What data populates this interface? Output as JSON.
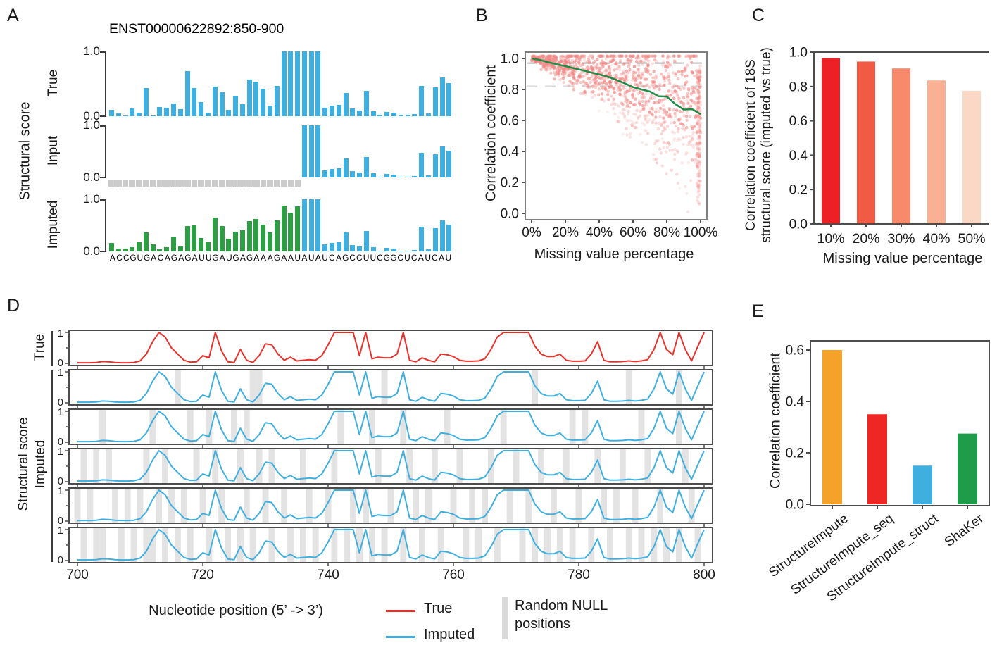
{
  "panels": {
    "a": {
      "letter": "A",
      "title": "ENST00000622892:850-900",
      "ylabel": "Structural score"
    },
    "b": {
      "letter": "B",
      "ylabel": "Correlation coefficient",
      "xlabel": "Missing value percentage"
    },
    "c": {
      "letter": "C",
      "ylabel_lines": [
        "Correlation coefficient of 18S",
        "structural score (imputed vs true)"
      ],
      "xlabel": "Missing value percentage"
    },
    "d": {
      "letter": "D",
      "row_label_true": "True",
      "ylabel_lines": [
        "Structural score",
        "Imputed"
      ],
      "xlabel": "Nucleotide position (5’ -> 3’)",
      "legend": [
        {
          "label": "True",
          "color": "#e8312a",
          "type": "line"
        },
        {
          "label": "Imputed",
          "color": "#3fafe0",
          "type": "line"
        },
        {
          "label": "Random NULL positions",
          "color": "#d9d9d9",
          "type": "band"
        }
      ]
    },
    "e": {
      "letter": "E",
      "ylabel": "Correlation coefficient"
    }
  },
  "chart_data": [
    {
      "id": "A",
      "type": "bar",
      "title": "ENST00000622892:850-900",
      "sequence": "ACCGUGACAGAGAUUGAUGAGAAAGAAUAUAUCAGCCUUCGGCUCAUCAU",
      "ylim": [
        0,
        1
      ],
      "ytick_labels": [
        "1.0",
        "0.0"
      ],
      "bar_color": "#3fafe0",
      "imputed_color": "#2e9e45",
      "null_color": "#cbcbcb",
      "null_count": 28,
      "rows": [
        {
          "name": "True",
          "values": [
            0.1,
            0.04,
            0.01,
            0.12,
            0.05,
            0.43,
            0.01,
            0.14,
            0.13,
            0.2,
            0.11,
            0.7,
            0.44,
            0.22,
            0.05,
            0.46,
            0.37,
            0.1,
            0.31,
            0.19,
            0.57,
            0.53,
            0.42,
            0.16,
            0.47,
            1,
            1,
            1,
            1,
            1,
            1,
            0.13,
            0.16,
            0.17,
            0.36,
            0.12,
            0.09,
            0.39,
            0.08,
            0.02,
            0.07,
            0.05,
            0.02,
            0.02,
            0.03,
            0.47,
            0.04,
            0.45,
            0.6,
            0.51
          ]
        },
        {
          "name": "Input",
          "values": [
            null,
            null,
            null,
            null,
            null,
            null,
            null,
            null,
            null,
            null,
            null,
            null,
            null,
            null,
            null,
            null,
            null,
            null,
            null,
            null,
            null,
            null,
            null,
            null,
            null,
            null,
            null,
            null,
            1,
            1,
            1,
            0.13,
            0.16,
            0.17,
            0.36,
            0.12,
            0.09,
            0.39,
            0.08,
            0.02,
            0.07,
            0.05,
            0.02,
            0.02,
            0.03,
            0.47,
            0.04,
            0.45,
            0.6,
            0.51
          ]
        },
        {
          "name": "Imputed",
          "values": [
            0.16,
            0.06,
            0.05,
            0.08,
            0.17,
            0.36,
            0.14,
            0.04,
            0.08,
            0.29,
            0.09,
            0.48,
            0.5,
            0.26,
            0.18,
            0.65,
            0.48,
            0.24,
            0.38,
            0.4,
            0.58,
            0.62,
            0.52,
            0.36,
            0.6,
            0.88,
            0.75,
            0.86,
            1,
            1,
            1,
            0.13,
            0.16,
            0.17,
            0.36,
            0.12,
            0.09,
            0.39,
            0.08,
            0.02,
            0.07,
            0.05,
            0.02,
            0.02,
            0.03,
            0.47,
            0.04,
            0.45,
            0.6,
            0.51
          ]
        }
      ]
    },
    {
      "id": "B",
      "type": "scatter",
      "xlabel": "Missing value percentage",
      "ylabel": "Correlation coefficient",
      "x_tick_labels": [
        "0%",
        "20%",
        "40%",
        "60%",
        "80%",
        "100%"
      ],
      "y_tick_labels": [
        "0.0",
        "0.2",
        "0.4",
        "0.6",
        "0.8",
        "1.0"
      ],
      "xlim": [
        0,
        100
      ],
      "ylim": [
        0,
        1
      ],
      "dashed_lines_y": [
        0.97,
        0.82
      ],
      "trend": {
        "x": [
          0,
          5,
          10,
          15,
          20,
          25,
          30,
          35,
          40,
          45,
          50,
          55,
          60,
          65,
          70,
          75,
          80,
          85,
          90,
          95,
          100
        ],
        "y": [
          1.0,
          0.99,
          0.975,
          0.962,
          0.95,
          0.937,
          0.924,
          0.91,
          0.897,
          0.882,
          0.862,
          0.84,
          0.815,
          0.8,
          0.787,
          0.756,
          0.754,
          0.706,
          0.67,
          0.673,
          0.64
        ]
      },
      "trend_color": "#1e8c46",
      "dot_color_rgb": [
        240,
        133,
        130
      ],
      "scatter_gen": {
        "seed": 9,
        "count": 1150,
        "strip_count": 130
      }
    },
    {
      "id": "C",
      "type": "bar",
      "categories": [
        "10%",
        "20%",
        "30%",
        "40%",
        "50%"
      ],
      "values": [
        0.965,
        0.945,
        0.905,
        0.835,
        0.775
      ],
      "colors": [
        "#ed2025",
        "#f15b44",
        "#f68a6a",
        "#fab093",
        "#fbd7c5"
      ],
      "y_tick_labels": [
        "0.0",
        "0.2",
        "0.4",
        "0.6",
        "0.8",
        "1.0"
      ],
      "ylim": [
        0,
        1
      ],
      "xlabel": "Missing value percentage",
      "ylabel": "Correlation coefficient of 18S structural score (imputed vs true)"
    },
    {
      "id": "D",
      "type": "line",
      "x_start": 700,
      "x_end": 800,
      "x_tick_labels": [
        "700",
        "720",
        "740",
        "760",
        "780",
        "800"
      ],
      "y_tick_labels": [
        "1",
        "0"
      ],
      "xlabel": "Nucleotide position (5’ -> 3’)",
      "true_color": "#e8312a",
      "imputed_color": "#3fafe0",
      "null_band_color": "#e3e3e3",
      "series_true": [
        0.02,
        0.02,
        0.02,
        0.03,
        0.06,
        0.05,
        0.03,
        0.02,
        0.02,
        0.03,
        0.08,
        0.3,
        0.7,
        1.0,
        0.85,
        0.5,
        0.3,
        0.1,
        0.04,
        0.05,
        0.25,
        0.18,
        1.0,
        0.4,
        0.05,
        0.03,
        0.45,
        0.1,
        0.03,
        0.25,
        0.63,
        0.6,
        0.3,
        0.1,
        0.2,
        0.08,
        0.1,
        0.12,
        0.1,
        0.25,
        0.6,
        1.0,
        1.0,
        1.0,
        1.0,
        0.25,
        1.0,
        0.15,
        0.2,
        0.18,
        0.18,
        0.3,
        1.0,
        0.1,
        0.05,
        0.18,
        0.1,
        0.05,
        0.3,
        0.28,
        0.22,
        0.1,
        0.07,
        0.07,
        0.08,
        0.15,
        0.45,
        0.85,
        1.0,
        1.0,
        1.0,
        1.0,
        1.0,
        0.55,
        0.3,
        0.22,
        0.22,
        0.3,
        0.1,
        0.07,
        0.07,
        0.08,
        0.3,
        0.7,
        0.1,
        0.05,
        0.05,
        0.06,
        0.08,
        0.06,
        0.08,
        0.12,
        0.45,
        1.0,
        0.45,
        0.28,
        1.0,
        0.45,
        0.08,
        0.55,
        1.0
      ],
      "imputed_rows": [
        {
          "null_positions": [
            716,
            728,
            729,
            749,
            773,
            788,
            796
          ]
        },
        {
          "null_positions": [
            704,
            712,
            718,
            721,
            725,
            727,
            742,
            747,
            752,
            759,
            768,
            779,
            781,
            790,
            796
          ]
        },
        {
          "null_positions": [
            701,
            703,
            705,
            711,
            714,
            719,
            722,
            726,
            729,
            731,
            736,
            741,
            748,
            753,
            757,
            761,
            766,
            770,
            774,
            778,
            783,
            787,
            791,
            797
          ]
        },
        {
          "null_positions": [
            700,
            702,
            706,
            708,
            710,
            713,
            715,
            717,
            720,
            723,
            727,
            730,
            733,
            737,
            740,
            744,
            746,
            750,
            754,
            756,
            760,
            763,
            765,
            769,
            772,
            776,
            780,
            784,
            786,
            789,
            793,
            798
          ]
        },
        {
          "null_positions": [
            701,
            703,
            704,
            707,
            709,
            711,
            712,
            714,
            716,
            718,
            721,
            724,
            726,
            728,
            731,
            734,
            736,
            738,
            741,
            743,
            745,
            747,
            749,
            752,
            755,
            758,
            762,
            764,
            767,
            771,
            773,
            775,
            777,
            779,
            782,
            785,
            788,
            790,
            792,
            794,
            796,
            799
          ]
        }
      ]
    },
    {
      "id": "E",
      "type": "bar",
      "categories": [
        "StructureImpute",
        "StructureImpute_seq",
        "StructureImpute_struct",
        "ShaKer"
      ],
      "values": [
        0.6,
        0.35,
        0.15,
        0.275
      ],
      "colors": [
        "#f5a22b",
        "#ee2724",
        "#3fafe0",
        "#1f9c49"
      ],
      "y_tick_labels": [
        "0.0",
        "0.2",
        "0.4",
        "0.6"
      ],
      "ylim": [
        0,
        0.6
      ],
      "ylabel": "Correlation coefficient"
    }
  ]
}
